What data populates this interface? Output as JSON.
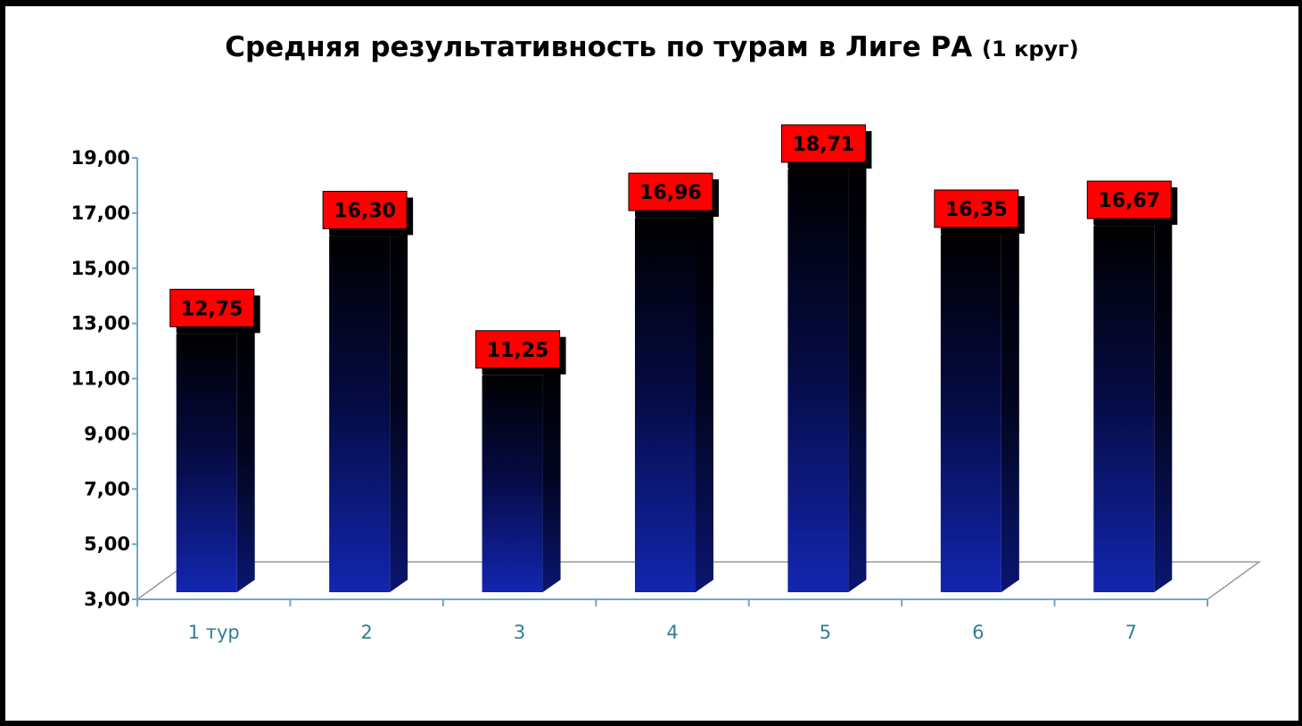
{
  "chart_data": {
    "type": "bar",
    "title": "Средняя результативность по турам в Лиге РА",
    "subtitle": "(1 круг)",
    "categories": [
      "1 тур",
      "2",
      "3",
      "4",
      "5",
      "6",
      "7"
    ],
    "values": [
      12.75,
      16.3,
      11.25,
      16.96,
      18.71,
      16.35,
      16.67
    ],
    "data_labels": [
      "12,75",
      "16,30",
      "11,25",
      "16,96",
      "18,71",
      "16,35",
      "16,67"
    ],
    "y_ticks": [
      "3,00",
      "5,00",
      "7,00",
      "9,00",
      "11,00",
      "13,00",
      "15,00",
      "17,00",
      "19,00"
    ],
    "ylim": [
      3,
      19
    ],
    "xlabel": "",
    "ylabel": "",
    "grid": false,
    "legend": "none",
    "colors": {
      "bar_top": "#000000",
      "bar_bottom": "#1226b0",
      "label_bg": "#ff0000",
      "axis": "#6fa8c8",
      "x_tick_text": "#2f7f96"
    }
  }
}
